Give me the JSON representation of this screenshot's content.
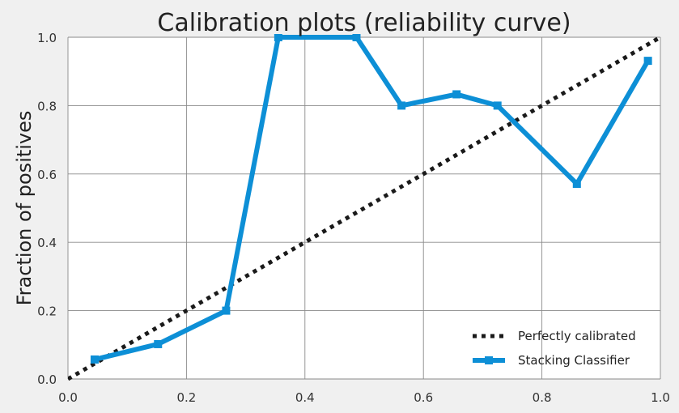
{
  "chart_data": {
    "type": "line",
    "title": "Calibration plots  (reliability curve)",
    "xlabel": "",
    "ylabel": "Fraction of positives",
    "xlim": [
      0.0,
      1.0
    ],
    "ylim": [
      0.0,
      1.0
    ],
    "x_ticks": [
      "0.0",
      "0.2",
      "0.4",
      "0.6",
      "0.8",
      "1.0"
    ],
    "y_ticks": [
      "0.0",
      "0.2",
      "0.4",
      "0.6",
      "0.8",
      "1.0"
    ],
    "grid": true,
    "legend_position": "lower-right",
    "series": [
      {
        "name": "Perfectly calibrated",
        "style": "dotted",
        "color": "#1a1a1a",
        "x": [
          0.0,
          1.0
        ],
        "y": [
          0.0,
          1.0
        ]
      },
      {
        "name": "Stacking Classifier",
        "style": "solid-square-markers",
        "color": "#0d8fd6",
        "x": [
          0.045,
          0.152,
          0.267,
          0.355,
          0.487,
          0.563,
          0.656,
          0.725,
          0.859,
          0.979
        ],
        "y": [
          0.057,
          0.102,
          0.2,
          1.0,
          1.0,
          0.8,
          0.833,
          0.8,
          0.571,
          0.931
        ]
      }
    ]
  }
}
